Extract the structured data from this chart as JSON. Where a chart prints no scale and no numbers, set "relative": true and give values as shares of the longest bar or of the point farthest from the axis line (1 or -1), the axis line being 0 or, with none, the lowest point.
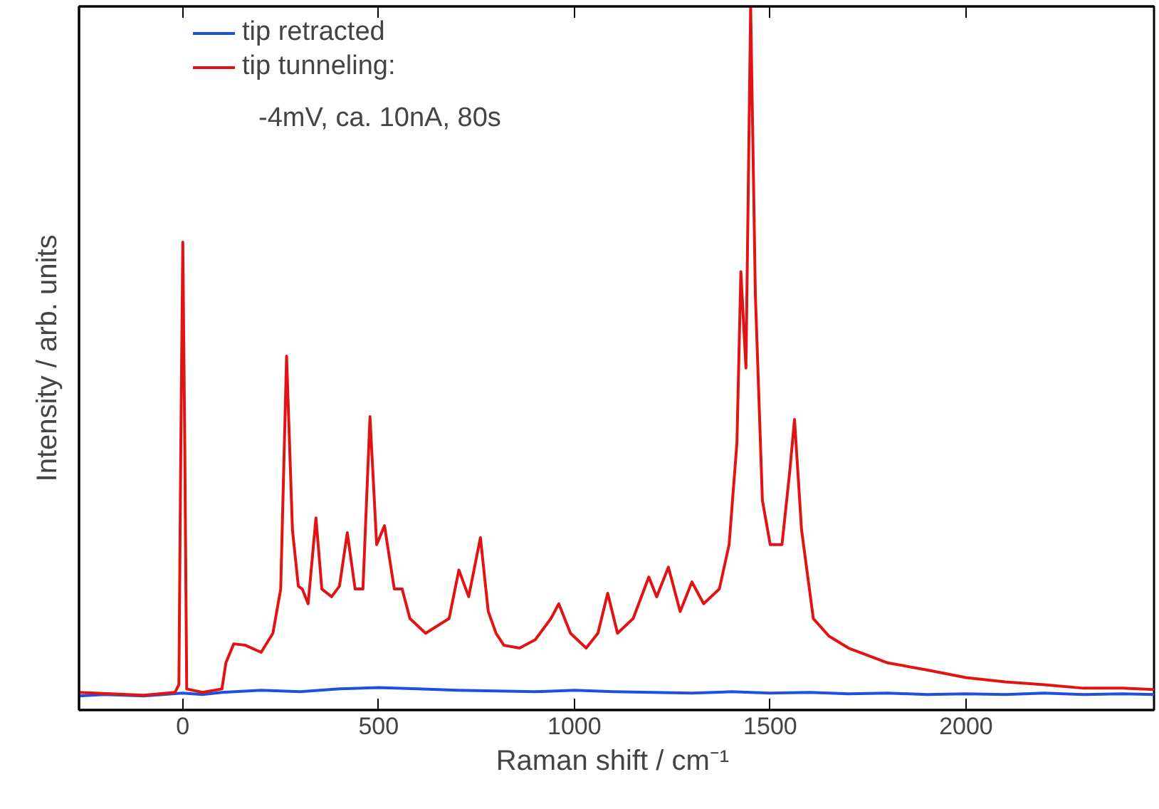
{
  "chart_data": {
    "type": "line",
    "relative": true,
    "xlabel": "Raman shift  / cm⁻¹",
    "ylabel": "Intensity / arb. units",
    "xlim": [
      -265,
      2480
    ],
    "xticks": [
      0,
      500,
      1000,
      1500,
      2000
    ],
    "grid": false,
    "legend": "top left",
    "line_style": "solid",
    "marker": "none",
    "annotations": [
      "-4mV, ca. 10nA, 80s"
    ],
    "series": [
      {
        "name": "tip retracted",
        "color": "#1f4fe0",
        "x": [
          -265,
          -200,
          -100,
          0,
          50,
          100,
          200,
          300,
          400,
          500,
          600,
          700,
          800,
          900,
          1000,
          1100,
          1200,
          1300,
          1400,
          1500,
          1600,
          1700,
          1800,
          1900,
          2000,
          2100,
          2200,
          2300,
          2400,
          2480
        ],
        "values": [
          0.02,
          0.022,
          0.02,
          0.024,
          0.022,
          0.025,
          0.028,
          0.026,
          0.03,
          0.032,
          0.03,
          0.028,
          0.027,
          0.026,
          0.028,
          0.026,
          0.025,
          0.024,
          0.026,
          0.024,
          0.025,
          0.023,
          0.024,
          0.022,
          0.023,
          0.022,
          0.024,
          0.022,
          0.023,
          0.022
        ]
      },
      {
        "name": "tip tunneling:",
        "color": "#e01414",
        "x": [
          -265,
          -100,
          -20,
          -10,
          -5,
          0,
          5,
          10,
          50,
          100,
          110,
          130,
          160,
          200,
          230,
          250,
          265,
          280,
          295,
          305,
          320,
          340,
          355,
          380,
          400,
          420,
          440,
          460,
          478,
          495,
          515,
          540,
          560,
          580,
          620,
          680,
          705,
          730,
          760,
          780,
          800,
          820,
          860,
          900,
          940,
          960,
          990,
          1030,
          1060,
          1085,
          1110,
          1150,
          1190,
          1210,
          1240,
          1270,
          1300,
          1330,
          1370,
          1395,
          1415,
          1425,
          1438,
          1450,
          1462,
          1480,
          1500,
          1530,
          1550,
          1562,
          1580,
          1610,
          1650,
          1700,
          1800,
          1900,
          2000,
          2100,
          2200,
          2300,
          2400,
          2480
        ],
        "values": [
          0.025,
          0.021,
          0.025,
          0.036,
          0.38,
          0.665,
          0.38,
          0.03,
          0.025,
          0.03,
          0.067,
          0.094,
          0.092,
          0.082,
          0.109,
          0.172,
          0.503,
          0.256,
          0.176,
          0.172,
          0.151,
          0.273,
          0.172,
          0.161,
          0.176,
          0.252,
          0.172,
          0.172,
          0.417,
          0.235,
          0.262,
          0.172,
          0.172,
          0.13,
          0.109,
          0.13,
          0.199,
          0.161,
          0.245,
          0.14,
          0.109,
          0.092,
          0.088,
          0.1,
          0.13,
          0.151,
          0.109,
          0.088,
          0.109,
          0.166,
          0.109,
          0.13,
          0.189,
          0.161,
          0.203,
          0.14,
          0.182,
          0.151,
          0.172,
          0.235,
          0.38,
          0.623,
          0.486,
          1.0,
          0.591,
          0.298,
          0.235,
          0.235,
          0.34,
          0.413,
          0.256,
          0.13,
          0.105,
          0.088,
          0.067,
          0.057,
          0.046,
          0.04,
          0.036,
          0.031,
          0.031,
          0.029
        ]
      }
    ]
  }
}
